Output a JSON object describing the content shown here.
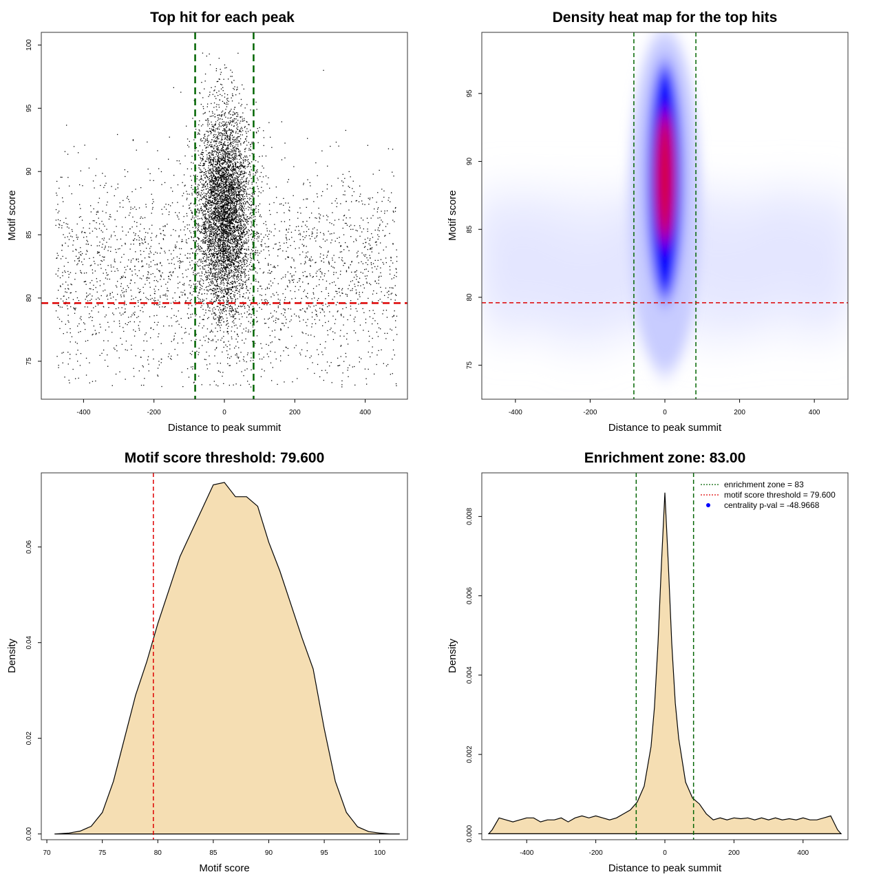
{
  "chart_data": [
    {
      "type": "scatter",
      "title": "Top hit for each peak",
      "xlabel": "Distance to peak summit",
      "ylabel": "Motif score",
      "xlim": [
        -520,
        520
      ],
      "ylim": [
        72,
        101
      ],
      "xticks": [
        -400,
        -200,
        0,
        200,
        400
      ],
      "yticks": [
        75,
        80,
        85,
        90,
        95,
        100
      ],
      "grid": false,
      "vlines": [
        -83,
        83
      ],
      "hline": 79.6,
      "points_description_counts": {
        "background": 2600,
        "central": 5200
      },
      "background_x_range": [
        -480,
        490
      ],
      "background_y_range": [
        73,
        99
      ],
      "central_x_sd": 38,
      "central_y_mean": 87,
      "central_y_sd": 4
    },
    {
      "type": "heatmap",
      "title": "Density heat map for the top hits",
      "xlabel": "Distance to peak summit",
      "ylabel": "Motif score",
      "xlim": [
        -490,
        490
      ],
      "ylim": [
        72.5,
        99.5
      ],
      "xticks": [
        -400,
        -200,
        0,
        200,
        400
      ],
      "yticks": [
        75,
        80,
        85,
        90,
        95
      ],
      "grid": false,
      "vlines": [
        -83,
        83
      ],
      "hline": 79.6,
      "peak_x": 0,
      "peak_y": 88.5,
      "colors": [
        "#ffffff",
        "#0000ff",
        "#ff0000"
      ]
    },
    {
      "type": "area",
      "title": "Motif score threshold: 79.600",
      "xlabel": "Motif score",
      "ylabel": "Density",
      "xlim": [
        69.5,
        102.5
      ],
      "ylim": [
        -0.0012,
        0.0755
      ],
      "xticks": [
        70,
        75,
        80,
        85,
        90,
        95,
        100
      ],
      "yticks": [
        "0.00",
        "0.02",
        "0.04",
        "0.06"
      ],
      "grid": false,
      "vline": 79.6,
      "x": [
        70.7,
        72,
        73,
        74,
        75,
        76,
        77,
        78,
        79,
        80,
        81,
        82,
        83,
        84,
        85,
        86,
        87,
        88,
        89,
        90,
        91,
        92,
        93,
        94,
        95,
        96,
        97,
        98,
        99,
        100,
        101,
        101.8
      ],
      "values": [
        0.0,
        0.0002,
        0.0006,
        0.0016,
        0.0045,
        0.011,
        0.02,
        0.029,
        0.036,
        0.044,
        0.051,
        0.058,
        0.063,
        0.068,
        0.073,
        0.0735,
        0.0705,
        0.0705,
        0.0685,
        0.061,
        0.055,
        0.048,
        0.041,
        0.0345,
        0.022,
        0.011,
        0.0045,
        0.0015,
        0.0005,
        0.0002,
        0.0,
        0.0
      ]
    },
    {
      "type": "area",
      "title": "Enrichment zone: 83.00",
      "xlabel": "Distance to peak summit",
      "ylabel": "Density",
      "xlim": [
        -530,
        530
      ],
      "ylim": [
        -0.00015,
        0.0091
      ],
      "xticks": [
        -400,
        -200,
        0,
        200,
        400
      ],
      "yticks": [
        "0.000",
        "0.002",
        "0.004",
        "0.006",
        "0.008"
      ],
      "grid": false,
      "vlines": [
        -83,
        83
      ],
      "x": [
        -510,
        -500,
        -480,
        -460,
        -440,
        -420,
        -400,
        -380,
        -360,
        -340,
        -320,
        -300,
        -280,
        -260,
        -240,
        -220,
        -200,
        -180,
        -160,
        -140,
        -120,
        -100,
        -80,
        -60,
        -40,
        -30,
        -20,
        -10,
        0,
        10,
        20,
        30,
        40,
        60,
        80,
        100,
        120,
        140,
        160,
        180,
        200,
        220,
        240,
        260,
        280,
        300,
        320,
        340,
        360,
        380,
        400,
        420,
        440,
        460,
        480,
        500,
        510
      ],
      "values": [
        0.0,
        0.0001,
        0.0004,
        0.00035,
        0.0003,
        0.00035,
        0.0004,
        0.0004,
        0.0003,
        0.00035,
        0.00035,
        0.0004,
        0.0003,
        0.0004,
        0.00045,
        0.0004,
        0.00045,
        0.0004,
        0.00035,
        0.0004,
        0.0005,
        0.0006,
        0.0008,
        0.0012,
        0.0022,
        0.0032,
        0.0048,
        0.0068,
        0.0086,
        0.0068,
        0.0048,
        0.0033,
        0.0024,
        0.0013,
        0.0009,
        0.00075,
        0.0005,
        0.00035,
        0.0004,
        0.00035,
        0.0004,
        0.00038,
        0.0004,
        0.00035,
        0.0004,
        0.00035,
        0.0004,
        0.00035,
        0.00038,
        0.00035,
        0.0004,
        0.00035,
        0.00035,
        0.0004,
        0.00045,
        0.0001,
        0.0
      ],
      "legend": {
        "placement": "top-right",
        "entries": [
          "enrichment zone = 83",
          "motif score threshold = 79.600",
          "centrality p-val = -48.9668"
        ]
      }
    }
  ],
  "colors": {
    "fill": "#f5deb3",
    "green": "#006400",
    "red": "#dd0000",
    "legend_blue": "#0000ff"
  }
}
